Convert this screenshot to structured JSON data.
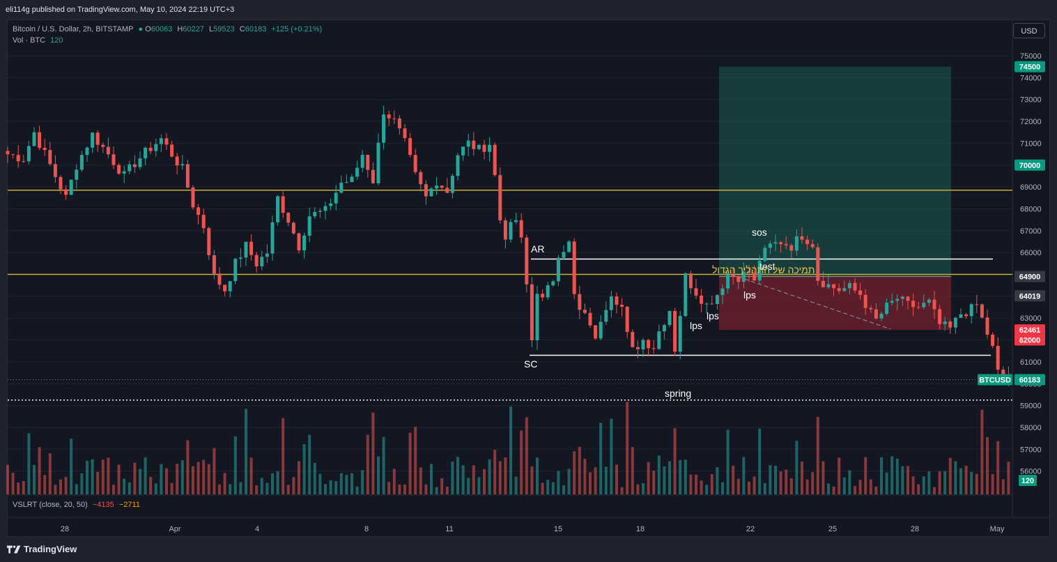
{
  "header": {
    "published_by": "eli114g published on TradingView.com, May 10, 2024 22:19 UTC+3"
  },
  "legend": {
    "symbol": "Bitcoin / U.S. Dollar, 2h, BITSTAMP",
    "open_label": "O",
    "open": "60063",
    "high_label": "H",
    "high": "60227",
    "low_label": "L",
    "low": "59523",
    "close_label": "C",
    "close": "60183",
    "change": "+125 (+0.21%)",
    "volume_label": "Vol · BTC",
    "volume": "120"
  },
  "indicator": {
    "label": "VSLRT (close, 20, 50)",
    "value1": "−4135",
    "value2": "−2711"
  },
  "currency_button": "USD",
  "price_axis": {
    "ticks": [
      "75000",
      "74000",
      "73000",
      "72000",
      "71000",
      "70000",
      "69000",
      "68000",
      "67000",
      "66000",
      "65000",
      "64000",
      "63000",
      "62000",
      "61000",
      "60000",
      "59000",
      "58000",
      "57000",
      "56000"
    ]
  },
  "price_badges": [
    {
      "label": "74500",
      "value": 74500,
      "color": "#089981"
    },
    {
      "label": "70000",
      "value": 70000,
      "color": "#089981"
    },
    {
      "label": "64900",
      "value": 64900,
      "color": "#363a45"
    },
    {
      "label": "64019",
      "value": 64019,
      "color": "#363a45"
    },
    {
      "label": "62461",
      "value": 62461,
      "color": "#f23645"
    },
    {
      "label": "62000",
      "value": 62000,
      "color": "#f23645"
    },
    {
      "label": "60183",
      "value": 60183,
      "color": "#089981"
    }
  ],
  "symbol_badge": "BTCUSD",
  "volume_badge": "120",
  "time_axis": {
    "labels": [
      "28",
      "Apr",
      "4",
      "8",
      "11",
      "15",
      "18",
      "22",
      "25",
      "28",
      "May"
    ]
  },
  "annotations": {
    "ar": "AR",
    "sc": "SC",
    "spring": "spring",
    "sos": "sos",
    "test": "test",
    "lps_1": "lps",
    "lps_2": "lps",
    "lps_3": "lps",
    "hebrew": "תמיכה של התהליך הגדול"
  },
  "chart_data": {
    "type": "candlestick",
    "symbol": "BTCUSD",
    "exchange": "BITSTAMP",
    "interval": "2h",
    "ylim": [
      55700,
      75500
    ],
    "horizontal_levels": [
      {
        "price": 68850,
        "color": "#c9b037"
      },
      {
        "price": 65000,
        "color": "#c9b037"
      },
      {
        "price": 65700,
        "color": "#ffffff"
      },
      {
        "price": 61300,
        "color": "#ffffff"
      },
      {
        "price": 59250,
        "color": "#ffffff",
        "style": "dotted"
      }
    ],
    "position": {
      "entry": 64900,
      "target": 74500,
      "stop": 62461
    },
    "path": [
      [
        0,
        70500
      ],
      [
        3,
        70300
      ],
      [
        5,
        71500
      ],
      [
        8,
        70000
      ],
      [
        10,
        69000
      ],
      [
        11,
        68500
      ],
      [
        13,
        70000
      ],
      [
        16,
        71400
      ],
      [
        19,
        70500
      ],
      [
        22,
        69500
      ],
      [
        24,
        70100
      ],
      [
        27,
        70800
      ],
      [
        29,
        71200
      ],
      [
        31,
        70500
      ],
      [
        33,
        69800
      ],
      [
        35,
        68200
      ],
      [
        37,
        67200
      ],
      [
        39,
        64900
      ],
      [
        41,
        64300
      ],
      [
        43,
        65500
      ],
      [
        45,
        66300
      ],
      [
        47,
        65500
      ],
      [
        49,
        66000
      ],
      [
        51,
        68500
      ],
      [
        53,
        67500
      ],
      [
        55,
        66300
      ],
      [
        57,
        67700
      ],
      [
        60,
        67900
      ],
      [
        63,
        69200
      ],
      [
        65,
        69300
      ],
      [
        67,
        70500
      ],
      [
        69,
        69300
      ],
      [
        71,
        72500
      ],
      [
        73,
        72000
      ],
      [
        75,
        71000
      ],
      [
        77,
        69500
      ],
      [
        79,
        68500
      ],
      [
        81,
        69300
      ],
      [
        83,
        68800
      ],
      [
        85,
        70500
      ],
      [
        87,
        71000
      ],
      [
        89,
        70700
      ],
      [
        91,
        71000
      ],
      [
        92,
        69500
      ],
      [
        93,
        67500
      ],
      [
        94,
        66800
      ],
      [
        96,
        67500
      ],
      [
        97,
        66500
      ],
      [
        98,
        64500
      ],
      [
        99,
        62000
      ],
      [
        100,
        64300
      ],
      [
        101,
        63800
      ],
      [
        103,
        64800
      ],
      [
        104,
        66000
      ],
      [
        106,
        66400
      ],
      [
        107,
        64000
      ],
      [
        108,
        63300
      ],
      [
        110,
        62800
      ],
      [
        111,
        61900
      ],
      [
        112,
        63000
      ],
      [
        114,
        64200
      ],
      [
        116,
        63500
      ],
      [
        117,
        62200
      ],
      [
        118,
        61500
      ],
      [
        120,
        62000
      ],
      [
        122,
        61700
      ],
      [
        123,
        62400
      ],
      [
        125,
        63400
      ],
      [
        126,
        61600
      ],
      [
        127,
        63200
      ],
      [
        128,
        64900
      ],
      [
        130,
        64200
      ],
      [
        132,
        63600
      ],
      [
        134,
        64100
      ],
      [
        136,
        65000
      ],
      [
        138,
        64900
      ],
      [
        140,
        65100
      ],
      [
        141,
        64600
      ],
      [
        142,
        65700
      ],
      [
        144,
        66300
      ],
      [
        146,
        66500
      ],
      [
        148,
        66300
      ],
      [
        150,
        66800
      ],
      [
        152,
        66400
      ],
      [
        153,
        64800
      ],
      [
        155,
        64500
      ],
      [
        157,
        64300
      ],
      [
        159,
        64400
      ],
      [
        161,
        64100
      ],
      [
        163,
        63200
      ],
      [
        164,
        62900
      ],
      [
        166,
        63500
      ],
      [
        168,
        63900
      ],
      [
        170,
        63600
      ],
      [
        172,
        63500
      ],
      [
        174,
        63700
      ],
      [
        176,
        62700
      ],
      [
        178,
        62500
      ],
      [
        180,
        63200
      ],
      [
        182,
        63400
      ],
      [
        183,
        63600
      ],
      [
        185,
        62300
      ],
      [
        186,
        61600
      ],
      [
        187,
        60500
      ],
      [
        188,
        60400
      ],
      [
        189,
        60100
      ]
    ]
  }
}
